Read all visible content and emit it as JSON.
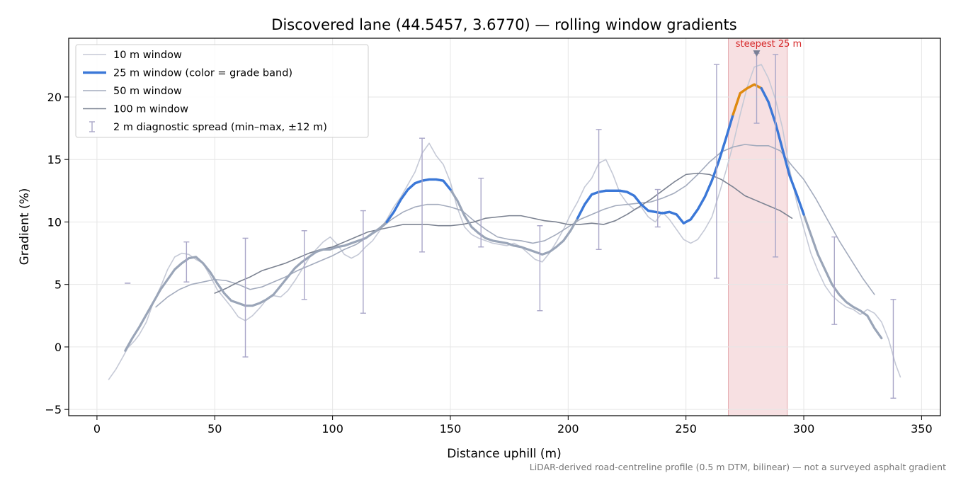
{
  "chart_data": {
    "type": "line",
    "title": "Discovered lane (44.5457, 3.6770) — rolling window gradients",
    "xlabel": "Distance uphill (m)",
    "ylabel": "Gradient (%)",
    "xlim": [
      -12,
      358
    ],
    "ylim": [
      -5.5,
      24.7
    ],
    "xticks": [
      0,
      50,
      100,
      150,
      200,
      250,
      300,
      350
    ],
    "yticks": [
      -5,
      0,
      5,
      10,
      15,
      20
    ],
    "grid": true,
    "legend_position": "top-left",
    "footnote": "LiDAR-derived road-centreline profile (0.5 m DTM, bilinear) — not a surveyed asphalt gradient",
    "highlight": {
      "x_range": [
        268,
        293
      ],
      "color": "#f4d6d8",
      "label": "steepest 25 m",
      "label_color": "#d62728",
      "marker": {
        "x": 280,
        "y": 23.5
      }
    },
    "band_colors": {
      "moderate": "#3b78d8",
      "steep": "#e08a0e"
    },
    "series": [
      {
        "name": "10 m window",
        "color": "#c5c9d6",
        "width": 1.6,
        "x": [
          5,
          8,
          11,
          13,
          16,
          18,
          21,
          24,
          27,
          30,
          33,
          36,
          39,
          42,
          45,
          48,
          51,
          54,
          57,
          60,
          63,
          66,
          69,
          72,
          75,
          78,
          81,
          84,
          87,
          90,
          93,
          96,
          99,
          102,
          105,
          108,
          111,
          114,
          117,
          120,
          123,
          126,
          129,
          132,
          135,
          138,
          141,
          144,
          147,
          150,
          153,
          156,
          159,
          162,
          165,
          168,
          171,
          174,
          177,
          180,
          183,
          186,
          189,
          192,
          195,
          198,
          201,
          204,
          207,
          210,
          213,
          216,
          219,
          222,
          225,
          228,
          231,
          234,
          237,
          240,
          243,
          246,
          249,
          252,
          255,
          258,
          261,
          264,
          267,
          270,
          273,
          276,
          279,
          282,
          285,
          288,
          291,
          294,
          297,
          300,
          303,
          306,
          309,
          312,
          315,
          318,
          321,
          324,
          327,
          330,
          333,
          336,
          339,
          341
        ],
        "y": [
          -2.6,
          -1.8,
          -0.8,
          -0.1,
          0.5,
          1.0,
          2.0,
          3.6,
          4.8,
          6.2,
          7.2,
          7.5,
          7.4,
          7.0,
          6.7,
          5.7,
          4.6,
          3.9,
          3.2,
          2.4,
          2.1,
          2.5,
          3.1,
          3.8,
          4.1,
          4.0,
          4.5,
          5.3,
          6.2,
          7.1,
          7.8,
          8.4,
          8.8,
          8.2,
          7.4,
          7.1,
          7.4,
          8.0,
          8.5,
          9.3,
          10.2,
          11.2,
          12.0,
          13.0,
          14.0,
          15.5,
          16.3,
          15.3,
          14.6,
          13.2,
          11.1,
          9.6,
          9.0,
          8.7,
          8.5,
          8.3,
          8.2,
          8.1,
          8.3,
          8.0,
          7.5,
          7.0,
          6.8,
          7.5,
          8.4,
          9.4,
          10.6,
          11.6,
          12.8,
          13.5,
          14.7,
          15.0,
          13.8,
          12.3,
          11.5,
          11.0,
          11.2,
          10.4,
          10.0,
          10.8,
          10.2,
          9.4,
          8.6,
          8.3,
          8.6,
          9.4,
          10.4,
          12.2,
          14.1,
          16.2,
          18.6,
          20.8,
          22.4,
          22.6,
          21.5,
          19.8,
          17.5,
          14.2,
          11.6,
          9.5,
          7.5,
          6.1,
          4.9,
          4.1,
          3.6,
          3.2,
          3.0,
          2.6,
          3.0,
          2.7,
          2.0,
          0.6,
          -1.4,
          -2.4
        ]
      },
      {
        "name": "25 m window (color = grade band)",
        "color": "#9aa5b8",
        "width": 3.2,
        "x": [
          12,
          15,
          18,
          21,
          24,
          27,
          30,
          33,
          36,
          39,
          42,
          45,
          48,
          51,
          54,
          57,
          60,
          63,
          66,
          69,
          72,
          75,
          78,
          81,
          84,
          87,
          90,
          93,
          96,
          99,
          102,
          105,
          108,
          111,
          114,
          117,
          120,
          123,
          126,
          129,
          132,
          135,
          138,
          141,
          144,
          147,
          150,
          153,
          156,
          159,
          162,
          165,
          168,
          171,
          174,
          177,
          180,
          183,
          186,
          189,
          192,
          195,
          198,
          201,
          204,
          207,
          210,
          213,
          216,
          219,
          222,
          225,
          228,
          231,
          234,
          237,
          240,
          243,
          246,
          249,
          252,
          255,
          258,
          261,
          264,
          267,
          270,
          273,
          276,
          279,
          282,
          285,
          288,
          291,
          294,
          297,
          300,
          303,
          306,
          309,
          312,
          315,
          318,
          321,
          324,
          327,
          330,
          333
        ],
        "y": [
          -0.3,
          0.7,
          1.6,
          2.6,
          3.6,
          4.6,
          5.4,
          6.2,
          6.7,
          7.1,
          7.2,
          6.7,
          6.0,
          5.1,
          4.3,
          3.7,
          3.5,
          3.3,
          3.3,
          3.5,
          3.8,
          4.2,
          4.9,
          5.6,
          6.3,
          6.8,
          7.2,
          7.6,
          7.8,
          7.8,
          8.0,
          8.1,
          8.3,
          8.5,
          8.7,
          9.1,
          9.5,
          10.0,
          10.8,
          11.8,
          12.6,
          13.1,
          13.3,
          13.4,
          13.4,
          13.3,
          12.6,
          11.7,
          10.5,
          9.6,
          9.1,
          8.7,
          8.5,
          8.4,
          8.3,
          8.1,
          8.0,
          7.8,
          7.6,
          7.4,
          7.6,
          8.0,
          8.5,
          9.3,
          10.3,
          11.4,
          12.2,
          12.4,
          12.5,
          12.5,
          12.5,
          12.4,
          12.1,
          11.4,
          10.9,
          10.8,
          10.7,
          10.8,
          10.6,
          9.9,
          10.2,
          11.0,
          12.0,
          13.3,
          14.9,
          16.7,
          18.6,
          20.3,
          20.7,
          21.0,
          20.7,
          19.6,
          17.9,
          15.8,
          13.7,
          12.2,
          10.6,
          9.0,
          7.4,
          6.2,
          5.0,
          4.2,
          3.6,
          3.2,
          2.9,
          2.5,
          1.5,
          0.7
        ]
      },
      {
        "name": "50 m window",
        "color": "#a3abbd",
        "width": 1.6,
        "x": [
          25,
          30,
          35,
          40,
          45,
          50,
          55,
          60,
          65,
          70,
          75,
          80,
          85,
          90,
          95,
          100,
          105,
          110,
          115,
          120,
          125,
          130,
          135,
          140,
          145,
          150,
          155,
          160,
          165,
          170,
          175,
          180,
          185,
          190,
          195,
          200,
          205,
          210,
          215,
          220,
          225,
          230,
          235,
          240,
          245,
          250,
          255,
          260,
          265,
          270,
          275,
          280,
          285,
          290,
          295,
          300,
          305,
          310,
          315,
          320,
          325,
          330
        ],
        "y": [
          3.2,
          4.0,
          4.6,
          5.0,
          5.2,
          5.4,
          5.3,
          5.0,
          4.6,
          4.8,
          5.2,
          5.6,
          6.1,
          6.5,
          6.9,
          7.3,
          7.8,
          8.2,
          8.8,
          9.4,
          10.2,
          10.8,
          11.2,
          11.4,
          11.4,
          11.2,
          10.9,
          10.1,
          9.4,
          8.8,
          8.6,
          8.5,
          8.3,
          8.5,
          9.0,
          9.6,
          10.2,
          10.6,
          11.0,
          11.3,
          11.4,
          11.5,
          11.6,
          11.9,
          12.3,
          12.9,
          13.8,
          14.8,
          15.6,
          16.0,
          16.2,
          16.1,
          16.1,
          15.7,
          14.5,
          13.4,
          11.9,
          10.2,
          8.5,
          7.0,
          5.5,
          4.2
        ]
      },
      {
        "name": "100 m window",
        "color": "#7b8291",
        "width": 1.6,
        "x": [
          50,
          55,
          60,
          65,
          70,
          75,
          80,
          85,
          90,
          95,
          100,
          105,
          110,
          115,
          120,
          125,
          130,
          135,
          140,
          145,
          150,
          155,
          160,
          165,
          170,
          175,
          180,
          185,
          190,
          195,
          200,
          205,
          210,
          215,
          220,
          225,
          230,
          235,
          240,
          245,
          250,
          255,
          260,
          265,
          270,
          275,
          280,
          285,
          290,
          295
        ],
        "y": [
          4.3,
          4.7,
          5.2,
          5.6,
          6.1,
          6.4,
          6.7,
          7.1,
          7.5,
          7.8,
          8.0,
          8.4,
          8.8,
          9.2,
          9.4,
          9.6,
          9.8,
          9.8,
          9.8,
          9.7,
          9.7,
          9.8,
          10.0,
          10.3,
          10.4,
          10.5,
          10.5,
          10.3,
          10.1,
          10.0,
          9.8,
          9.8,
          9.9,
          9.8,
          10.1,
          10.6,
          11.2,
          11.8,
          12.5,
          13.2,
          13.8,
          13.9,
          13.8,
          13.4,
          12.8,
          12.1,
          11.7,
          11.3,
          10.9,
          10.3
        ]
      }
    ],
    "diagnostic_spread": {
      "name": "2 m diagnostic spread (min–max, ±12 m)",
      "color": "#a9a6c8",
      "points": [
        {
          "x": 13,
          "low": 5.1,
          "high": 5.1
        },
        {
          "x": 38,
          "low": 5.2,
          "high": 8.4
        },
        {
          "x": 63,
          "low": -0.8,
          "high": 8.7
        },
        {
          "x": 88,
          "low": 3.8,
          "high": 9.3
        },
        {
          "x": 113,
          "low": 2.7,
          "high": 10.9
        },
        {
          "x": 138,
          "low": 7.6,
          "high": 16.7
        },
        {
          "x": 163,
          "low": 8.0,
          "high": 13.5
        },
        {
          "x": 188,
          "low": 2.9,
          "high": 9.7
        },
        {
          "x": 213,
          "low": 7.8,
          "high": 17.4
        },
        {
          "x": 238,
          "low": 9.6,
          "high": 12.6
        },
        {
          "x": 263,
          "low": 5.5,
          "high": 22.6
        },
        {
          "x": 280,
          "low": 17.9,
          "high": 23.5
        },
        {
          "x": 288,
          "low": 7.2,
          "high": 23.4
        },
        {
          "x": 313,
          "low": 1.8,
          "high": 8.8
        },
        {
          "x": 338,
          "low": -4.1,
          "high": 3.8
        }
      ]
    }
  }
}
